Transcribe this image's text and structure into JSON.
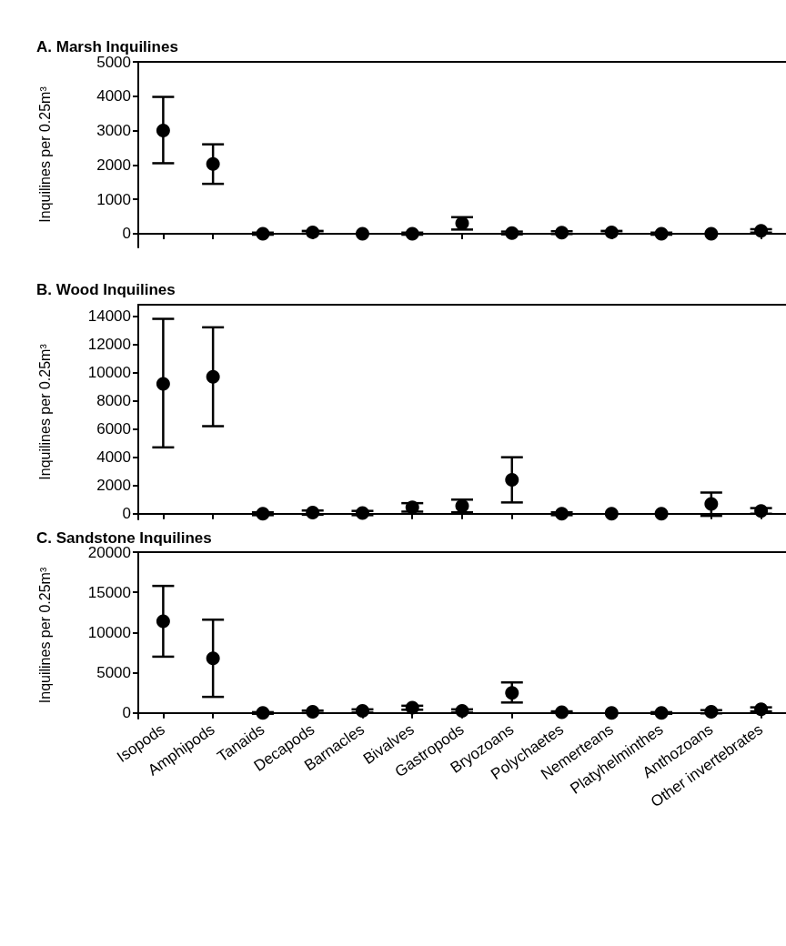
{
  "chart_data": [
    {
      "type": "scatter",
      "title": "A. Marsh Inquilines",
      "ylabel": "Inquilines per 0.25m³",
      "categories": [
        null,
        null,
        null,
        null,
        null,
        null,
        null,
        null,
        null,
        null,
        null,
        null,
        null
      ],
      "series": [
        {
          "color": "#000000",
          "values": [
            3000,
            2030,
            0,
            40,
            0,
            0,
            300,
            20,
            30,
            40,
            0,
            0,
            80
          ],
          "errors": [
            [
              2050,
              3980
            ],
            [
              1450,
              2600
            ],
            30,
            40,
            null,
            30,
            [
              120,
              480
            ],
            40,
            40,
            40,
            30,
            null,
            50
          ]
        }
      ],
      "ylim": [
        -400,
        5000
      ],
      "yticks": [
        0,
        1000,
        2000,
        3000,
        4000,
        5000
      ],
      "marker": "circle",
      "tick_labels": "y"
    },
    {
      "type": "scatter",
      "title": "B. Wood Inquilines",
      "ylabel": "Inquilines per 0.25m³",
      "categories": [
        null,
        null,
        null,
        null,
        null,
        null,
        null,
        null,
        null,
        null,
        null,
        null,
        null
      ],
      "series": [
        {
          "color": "#000000",
          "values": [
            9200,
            9700,
            0,
            80,
            50,
            450,
            550,
            2400,
            0,
            0,
            0,
            700,
            200
          ],
          "errors": [
            [
              4700,
              13800
            ],
            [
              6200,
              13200
            ],
            100,
            150,
            150,
            300,
            [
              100,
              1000
            ],
            [
              800,
              4000
            ],
            100,
            null,
            null,
            [
              -150,
              1500
            ],
            200
          ]
        }
      ],
      "ylim": [
        -400,
        14800
      ],
      "yticks": [
        0,
        2000,
        4000,
        6000,
        8000,
        10000,
        12000,
        14000
      ],
      "marker": "circle",
      "tick_labels": "y"
    },
    {
      "type": "scatter",
      "title": "C. Sandstone Inquilines",
      "ylabel": "Inquilines per 0.25m³",
      "categories": [
        "Isopods",
        "Amphipods",
        "Tanaids",
        "Decapods",
        "Barnacles",
        "Bivalves",
        "Gastropods",
        "Bryozoans",
        "Polychaetes",
        "Nemerteans",
        "Platyhelminthes",
        "Anthozoans",
        "Other invertebrates"
      ],
      "series": [
        {
          "color": "#000000",
          "values": [
            11400,
            6800,
            0,
            150,
            250,
            650,
            250,
            2500,
            100,
            0,
            0,
            150,
            450
          ],
          "errors": [
            [
              7000,
              15800
            ],
            [
              2000,
              11600
            ],
            100,
            150,
            200,
            250,
            200,
            [
              1300,
              3800
            ],
            100,
            null,
            100,
            200,
            250
          ]
        }
      ],
      "ylim": [
        -700,
        20000
      ],
      "yticks": [
        0,
        5000,
        10000,
        15000,
        20000
      ],
      "marker": "circle"
    }
  ]
}
